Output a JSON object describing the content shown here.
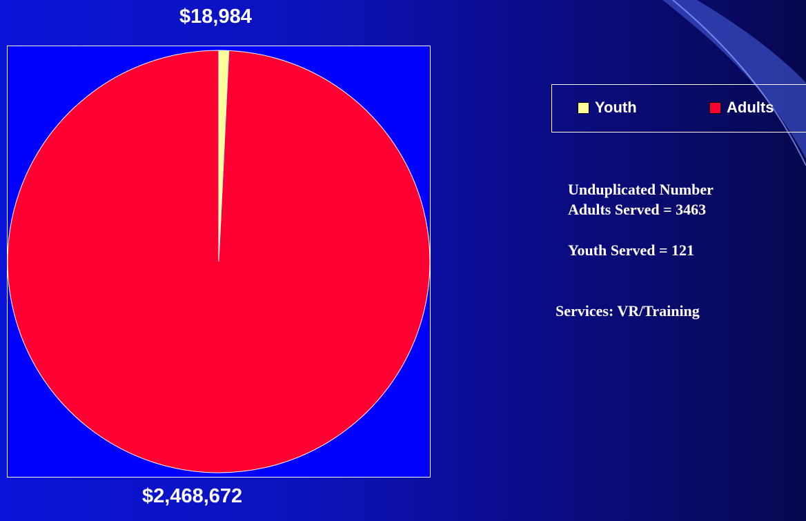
{
  "chart_data": {
    "type": "pie",
    "title": "",
    "slices": [
      {
        "name": "Youth",
        "value": 18984,
        "label": "$18,984",
        "color": "#ffff99"
      },
      {
        "name": "Adults",
        "value": 2468672,
        "label": "$2,468,672",
        "color": "#ff0033"
      }
    ],
    "legend": {
      "placement": "top-right",
      "items": [
        {
          "name": "Youth",
          "color": "#ffff99"
        },
        {
          "name": "Adults",
          "color": "#ff0033"
        }
      ]
    },
    "plot_background": "#0000ff"
  },
  "text": {
    "unduplicated_heading": "Unduplicated Number",
    "adults_served": "Adults Served = 3463",
    "youth_served": "Youth Served = 121",
    "services": "Services: VR/Training"
  },
  "colors": {
    "background_start": "#0a14d8",
    "background_end": "#070850",
    "text": "#ffffff"
  }
}
